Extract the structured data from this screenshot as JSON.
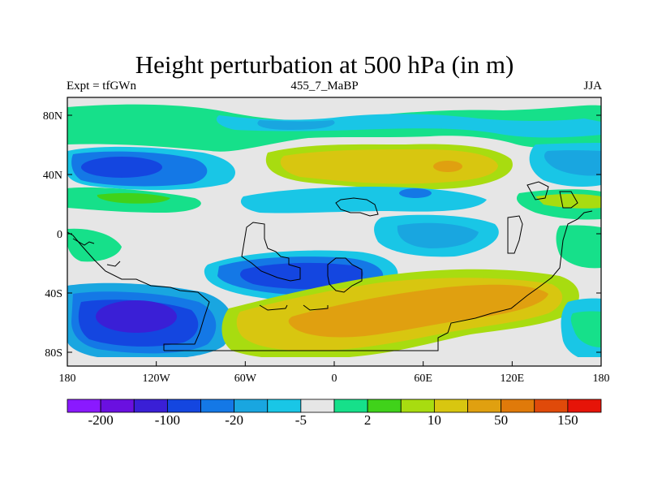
{
  "title": "Height perturbation at 500 hPa (in m)",
  "subtitle_left": "Expt = tfGWn",
  "subtitle_center": "455_7_MaBP",
  "subtitle_right": "JJA",
  "map": {
    "x_ticks": [
      "180",
      "120W",
      "60W",
      "0",
      "60E",
      "120E",
      "180"
    ],
    "y_ticks": [
      "80N",
      "40N",
      "0",
      "40S",
      "80S"
    ],
    "ocean_fill": "#e6e6e6"
  },
  "colorbar": {
    "colors": [
      "#8a19ff",
      "#6a10e0",
      "#3a1fd6",
      "#1446e0",
      "#1478e6",
      "#19a6e0",
      "#19c6e6",
      "#e6e6e6",
      "#16e08a",
      "#40d21a",
      "#a8dc10",
      "#d8c610",
      "#e0a010",
      "#e07a0a",
      "#e04a0a",
      "#e61408"
    ],
    "labels": [
      "-200",
      "-100",
      "-20",
      "-5",
      "2",
      "10",
      "50",
      "150"
    ]
  }
}
